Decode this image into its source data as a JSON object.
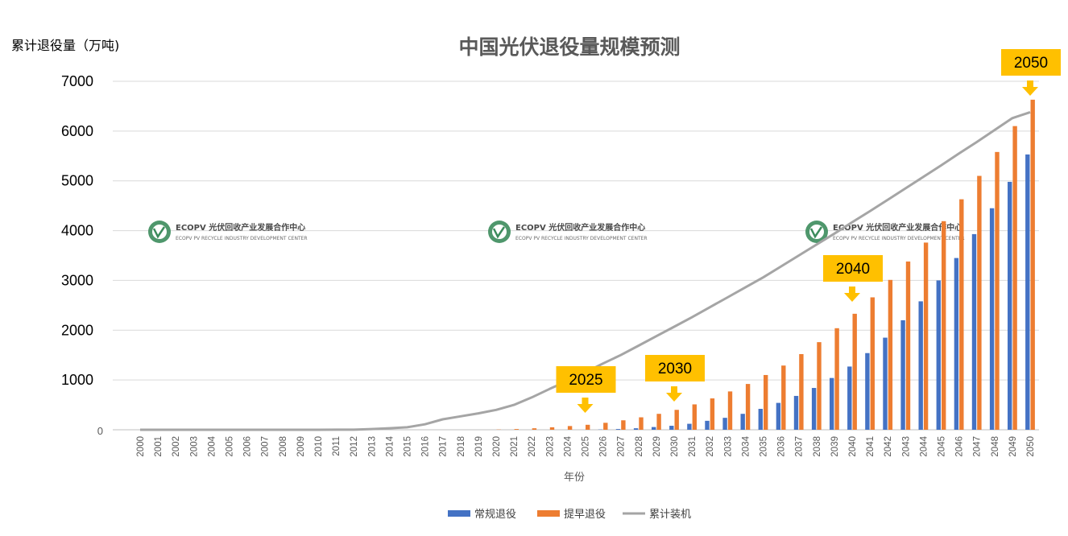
{
  "chart_data": {
    "type": "bar",
    "title": "中国光伏退役量规模预测",
    "ylabel": "累计退役量（万吨)",
    "xlabel": "年份",
    "ylim": [
      0,
      7000
    ],
    "yticks": [
      0,
      1000,
      2000,
      3000,
      4000,
      5000,
      6000,
      7000
    ],
    "grid": true,
    "legend_position": "bottom",
    "categories": [
      "2000",
      "2001",
      "2002",
      "2003",
      "2004",
      "2005",
      "2006",
      "2007",
      "2008",
      "2009",
      "2010",
      "2011",
      "2012",
      "2013",
      "2014",
      "2015",
      "2016",
      "2017",
      "2018",
      "2019",
      "2020",
      "2021",
      "2022",
      "2023",
      "2024",
      "2025",
      "2026",
      "2027",
      "2028",
      "2029",
      "2030",
      "2031",
      "2032",
      "2033",
      "2034",
      "2035",
      "2036",
      "2037",
      "2038",
      "2039",
      "2040",
      "2041",
      "2042",
      "2043",
      "2044",
      "2045",
      "2046",
      "2047",
      "2048",
      "2049",
      "2050"
    ],
    "series": [
      {
        "name": "常规退役",
        "type": "bar",
        "color": "#4472C4",
        "values": [
          0,
          0,
          0,
          0,
          0,
          0,
          0,
          0,
          0,
          0,
          0,
          0,
          0,
          0,
          0,
          0,
          0,
          0,
          0,
          0,
          0,
          0,
          0,
          0,
          0,
          0,
          5,
          15,
          30,
          55,
          80,
          120,
          180,
          240,
          320,
          420,
          540,
          680,
          840,
          1040,
          1270,
          1540,
          1850,
          2200,
          2580,
          3000,
          3450,
          3930,
          4450,
          4980,
          5530
        ]
      },
      {
        "name": "提早退役",
        "type": "bar",
        "color": "#ED7D31",
        "values": [
          0,
          0,
          0,
          0,
          0,
          0,
          0,
          0,
          0,
          0,
          0,
          0,
          0,
          0,
          0,
          0,
          0,
          0,
          0,
          0,
          5,
          15,
          30,
          50,
          75,
          100,
          140,
          190,
          250,
          320,
          400,
          510,
          630,
          770,
          920,
          1100,
          1290,
          1520,
          1760,
          2040,
          2330,
          2660,
          3010,
          3380,
          3760,
          4190,
          4630,
          5100,
          5580,
          6100,
          6630
        ]
      },
      {
        "name": "累计装机",
        "type": "line",
        "color": "#A5A5A5",
        "values": [
          0,
          0,
          0,
          0,
          0,
          0,
          0,
          0,
          0,
          0,
          0,
          1,
          2,
          15,
          30,
          50,
          110,
          210,
          270,
          330,
          400,
          500,
          650,
          820,
          980,
          1150,
          1330,
          1500,
          1690,
          1880,
          2070,
          2260,
          2460,
          2660,
          2860,
          3060,
          3280,
          3500,
          3720,
          3940,
          4170,
          4390,
          4620,
          4850,
          5080,
          5310,
          5550,
          5780,
          6020,
          6260,
          6380
        ]
      }
    ],
    "annotations": [
      {
        "label": "2025",
        "category": "2025"
      },
      {
        "label": "2030",
        "category": "2030"
      },
      {
        "label": "2040",
        "category": "2040"
      },
      {
        "label": "2050",
        "category": "2050"
      }
    ],
    "annotation_color": "#FFC000"
  },
  "watermark": {
    "title": "ECOPV 光伏回收产业发展合作中心",
    "subtitle": "ECOPV PV RECYCLE INDUSTRY  DEVELOPMENT CENTER",
    "logo": "ecopv-leaf-logo",
    "color": "#3c8c5c"
  }
}
